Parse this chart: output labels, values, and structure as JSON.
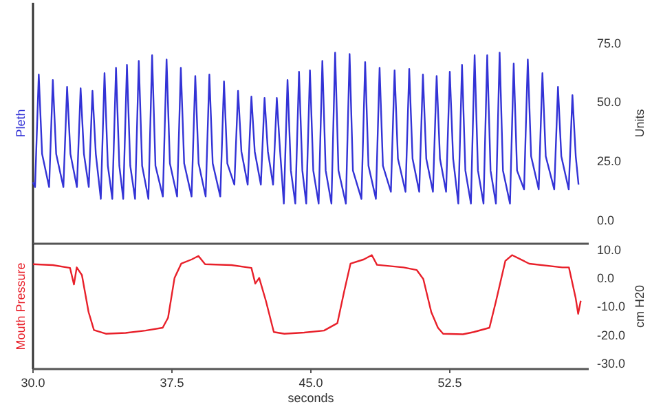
{
  "chart_data": [
    {
      "type": "line",
      "ylabel": "Units",
      "xlim": [
        30,
        60
      ],
      "ylim": [
        -10,
        92
      ],
      "yticks": [
        {
          "value": 0,
          "label": "0.0"
        },
        {
          "value": 25,
          "label": "25.0"
        },
        {
          "value": 50,
          "label": "50.0"
        },
        {
          "value": 75,
          "label": "75.0"
        }
      ],
      "tick_labels": "y",
      "series": [
        {
          "name": "Pleth",
          "color": "#3333d6",
          "x": [
            30.0,
            30.11,
            30.31,
            30.49,
            30.87,
            31.07,
            31.25,
            31.64,
            31.84,
            32.02,
            32.37,
            32.57,
            32.75,
            33.01,
            33.21,
            33.39,
            33.66,
            33.86,
            34.04,
            34.28,
            34.48,
            34.66,
            34.87,
            35.07,
            35.25,
            35.51,
            35.71,
            35.89,
            36.23,
            36.43,
            36.61,
            37.01,
            37.21,
            37.39,
            37.78,
            37.98,
            38.16,
            38.56,
            38.76,
            38.94,
            39.32,
            39.52,
            39.7,
            40.11,
            40.31,
            40.49,
            40.87,
            41.07,
            41.25,
            41.59,
            41.79,
            41.97,
            42.3,
            42.5,
            42.68,
            42.96,
            43.16,
            43.34,
            43.54,
            43.74,
            43.92,
            44.16,
            44.36,
            44.54,
            44.75,
            44.95,
            45.13,
            45.42,
            45.62,
            45.8,
            46.11,
            46.31,
            46.49,
            46.89,
            47.09,
            47.27,
            47.73,
            47.93,
            48.11,
            48.51,
            48.71,
            48.89,
            49.32,
            49.52,
            49.7,
            50.11,
            50.31,
            50.49,
            50.85,
            51.05,
            51.23,
            51.59,
            51.79,
            51.97,
            52.3,
            52.5,
            52.68,
            52.96,
            53.16,
            53.34,
            53.64,
            53.84,
            54.02,
            54.32,
            54.52,
            54.7,
            54.99,
            55.19,
            55.37,
            55.75,
            55.95,
            56.13,
            56.51,
            56.71,
            56.89,
            57.3,
            57.5,
            57.68,
            58.14,
            58.34,
            58.52,
            58.92,
            59.12,
            59.3,
            59.45
          ],
          "values": [
            16,
            14,
            61.6,
            28,
            14,
            59.3,
            28,
            14,
            56.4,
            28,
            14,
            55.8,
            28,
            14,
            54.7,
            28,
            9,
            62.2,
            23,
            9,
            64.5,
            23,
            9,
            65.7,
            23,
            9,
            67.4,
            23,
            9,
            69.8,
            23,
            10,
            68.0,
            24,
            10,
            64.5,
            24,
            10,
            61.0,
            24,
            10,
            61.6,
            24,
            10,
            58.7,
            24,
            15,
            54.7,
            29,
            15,
            52.3,
            29,
            15,
            51.7,
            29,
            15,
            51.7,
            29,
            7,
            59.3,
            21,
            7,
            62.8,
            21,
            7,
            63.4,
            21,
            7,
            67.4,
            21,
            7,
            70.9,
            21,
            7,
            70.3,
            21,
            9,
            66.9,
            23,
            9,
            64.5,
            23,
            12,
            63.4,
            26,
            12,
            64.0,
            26,
            12,
            61.6,
            26,
            12,
            61.0,
            26,
            12,
            62.8,
            26,
            7,
            65.7,
            21,
            7,
            69.8,
            21,
            7,
            69.8,
            21,
            7,
            70.9,
            21,
            7,
            66.3,
            21,
            13,
            68.0,
            27,
            13,
            62.2,
            27,
            13,
            56.4,
            27,
            13,
            52.9,
            27,
            15
          ]
        }
      ]
    },
    {
      "type": "line",
      "xlabel": "seconds",
      "ylabel": "cm H20",
      "xlim": [
        30,
        60
      ],
      "ylim": [
        -32,
        12
      ],
      "xticks": [
        {
          "value": 30,
          "label": "30.0"
        },
        37.5,
        {
          "value": 45,
          "label": "45.0"
        },
        52.5
      ],
      "yticks": [
        {
          "value": 10,
          "label": "10.0"
        },
        {
          "value": 0,
          "label": "0.0"
        },
        {
          "value": -10,
          "label": "-10.0"
        },
        {
          "value": -20,
          "label": "-20.0"
        },
        {
          "value": -30,
          "label": "-30.0"
        }
      ],
      "series": [
        {
          "name": "Mouth Pressure",
          "color": "#e8202a",
          "x": [
            30.0,
            31.07,
            32.0,
            32.21,
            32.36,
            32.64,
            33.0,
            33.29,
            33.93,
            35.0,
            36.07,
            37.0,
            37.29,
            37.64,
            38.0,
            38.57,
            38.93,
            39.29,
            40.71,
            41.79,
            42.0,
            42.21,
            42.57,
            43.0,
            43.57,
            44.64,
            45.71,
            46.43,
            46.79,
            47.14,
            47.86,
            48.29,
            48.57,
            50.0,
            50.71,
            51.07,
            51.5,
            51.86,
            52.14,
            53.21,
            53.79,
            54.64,
            55.0,
            55.5,
            55.86,
            56.79,
            58.57,
            58.93,
            59.29,
            59.43,
            59.57
          ],
          "values": [
            4.8,
            4.5,
            3.5,
            -2.3,
            3.7,
            1,
            -12,
            -18.3,
            -19.6,
            -19.3,
            -18.5,
            -17.5,
            -14,
            0,
            5,
            6.5,
            7.7,
            4.8,
            4.5,
            3.5,
            -2,
            0,
            -8,
            -19,
            -19.6,
            -19.2,
            -18.5,
            -15.9,
            -5,
            5,
            6.5,
            8,
            4.6,
            3.7,
            2.8,
            -0.4,
            -12,
            -17.5,
            -19.6,
            -19.8,
            -19,
            -17.5,
            -8,
            6,
            8,
            5,
            3.7,
            3.7,
            -6.9,
            -12.6,
            -8
          ]
        }
      ]
    }
  ]
}
